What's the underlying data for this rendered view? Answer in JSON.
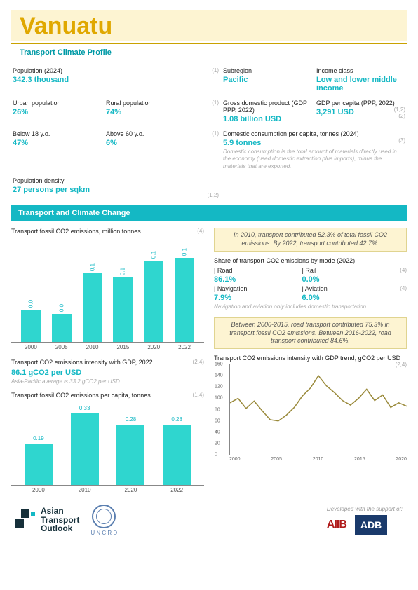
{
  "title": "Vanuatu",
  "subtitle": "Transport Climate Profile",
  "stats": {
    "population": {
      "label": "Population (2024)",
      "value": "342.3 thousand",
      "ref": "(1)"
    },
    "urban": {
      "label": "Urban population",
      "value": "26%"
    },
    "rural": {
      "label": "Rural population",
      "value": "74%",
      "ref": "(1)"
    },
    "below18": {
      "label": "Below 18 y.o.",
      "value": "47%"
    },
    "above60": {
      "label": "Above 60 y.o.",
      "value": "6%",
      "ref": "(1)"
    },
    "density": {
      "label": "Population density",
      "value": "27 persons per sqkm",
      "ref": "(1,2)"
    },
    "subregion": {
      "label": "Subregion",
      "value": "Pacific"
    },
    "income": {
      "label": "Income class",
      "value": "Low and lower middle income"
    },
    "gdp": {
      "label": "Gross domestic product (GDP PPP, 2022)",
      "value": "1.08 billion USD"
    },
    "gdpcap": {
      "label": "GDP per capita (PPP, 2022)",
      "value": "3,291 USD",
      "ref": "(1,2)",
      "ref2": "(2)"
    },
    "domestic": {
      "label": "Domestic consumption per capita, tonnes (2024)",
      "value": "5.9 tonnes",
      "ref": "(3)",
      "note": "Domestic consumption is the total amount of materials directly used in the economy (used domestic extraction plus imports), minus the materials that are exported."
    }
  },
  "section1_title": "Transport and Climate Change",
  "chart1": {
    "title": "Transport fossil CO2 emissions, million tonnes",
    "ref": "(4)",
    "categories": [
      "2000",
      "2005",
      "2010",
      "2015",
      "2020",
      "2022"
    ],
    "values": [
      0.0,
      0.0,
      0.1,
      0.1,
      0.1,
      0.1
    ],
    "display_heights": [
      46,
      40,
      98,
      92,
      116,
      120
    ],
    "bar_color": "#2fd6cf"
  },
  "intensity": {
    "title": "Transport CO2 emissions intensity with GDP, 2022",
    "value": "86.1 gCO2 per USD",
    "note": "Asia-Pacific average is 33.2 gCO2 per USD",
    "ref": "(2,4)"
  },
  "chart2": {
    "title": "Transport fossil CO2 emissions per capita, tonnes",
    "ref": "(1,4)",
    "categories": [
      "2000",
      "2010",
      "2020",
      "2022"
    ],
    "values": [
      0.19,
      0.33,
      0.28,
      0.28
    ],
    "display_heights": [
      59,
      102,
      86,
      86
    ],
    "bar_color": "#2fd6cf"
  },
  "callout1": "In 2010, transport contributed 52.3% of total fossil CO2 emissions. By 2022, transport contributed 42.7%.",
  "modes": {
    "title": "Share of transport CO2 emissions by mode (2022)",
    "items": [
      {
        "l": "| Road",
        "v": "86.1%"
      },
      {
        "l": "| Rail",
        "v": "0.0%",
        "ref": "(4)"
      },
      {
        "l": "| Navigation",
        "v": "7.9%"
      },
      {
        "l": "| Aviation",
        "v": "6.0%",
        "ref": "(4)"
      }
    ],
    "note": "Navigation and aviation only includes domestic transportation"
  },
  "callout2": "Between 2000-2015, road transport contributed 75.3% in transport fossil CO2 emissions. Between 2016-2022, road transport contributed 84.6%.",
  "linechart": {
    "title": "Transport CO2 emissions intensity with GDP trend, gCO2 per USD",
    "ref": "(2,4)",
    "ylim": [
      0,
      160
    ],
    "yticks": [
      0,
      20,
      40,
      60,
      80,
      100,
      120,
      140,
      160
    ],
    "xlim": [
      2000,
      2022
    ],
    "xticks": [
      "2000",
      "2005",
      "2010",
      "2015",
      "2020"
    ],
    "line_color": "#9a8a3b",
    "points": [
      [
        2000,
        92
      ],
      [
        2001,
        100
      ],
      [
        2002,
        82
      ],
      [
        2003,
        95
      ],
      [
        2004,
        78
      ],
      [
        2005,
        62
      ],
      [
        2006,
        60
      ],
      [
        2007,
        70
      ],
      [
        2008,
        84
      ],
      [
        2009,
        104
      ],
      [
        2010,
        118
      ],
      [
        2011,
        140
      ],
      [
        2012,
        122
      ],
      [
        2013,
        110
      ],
      [
        2014,
        96
      ],
      [
        2015,
        88
      ],
      [
        2016,
        100
      ],
      [
        2017,
        116
      ],
      [
        2018,
        96
      ],
      [
        2019,
        106
      ],
      [
        2020,
        84
      ],
      [
        2021,
        92
      ],
      [
        2022,
        86
      ]
    ]
  },
  "logos": {
    "ato": "Asian\nTransport\nOutlook",
    "uncrd": "U N C R D",
    "support": "Developed with the support of:",
    "aiib": "AIIB",
    "adb": "ADB"
  }
}
